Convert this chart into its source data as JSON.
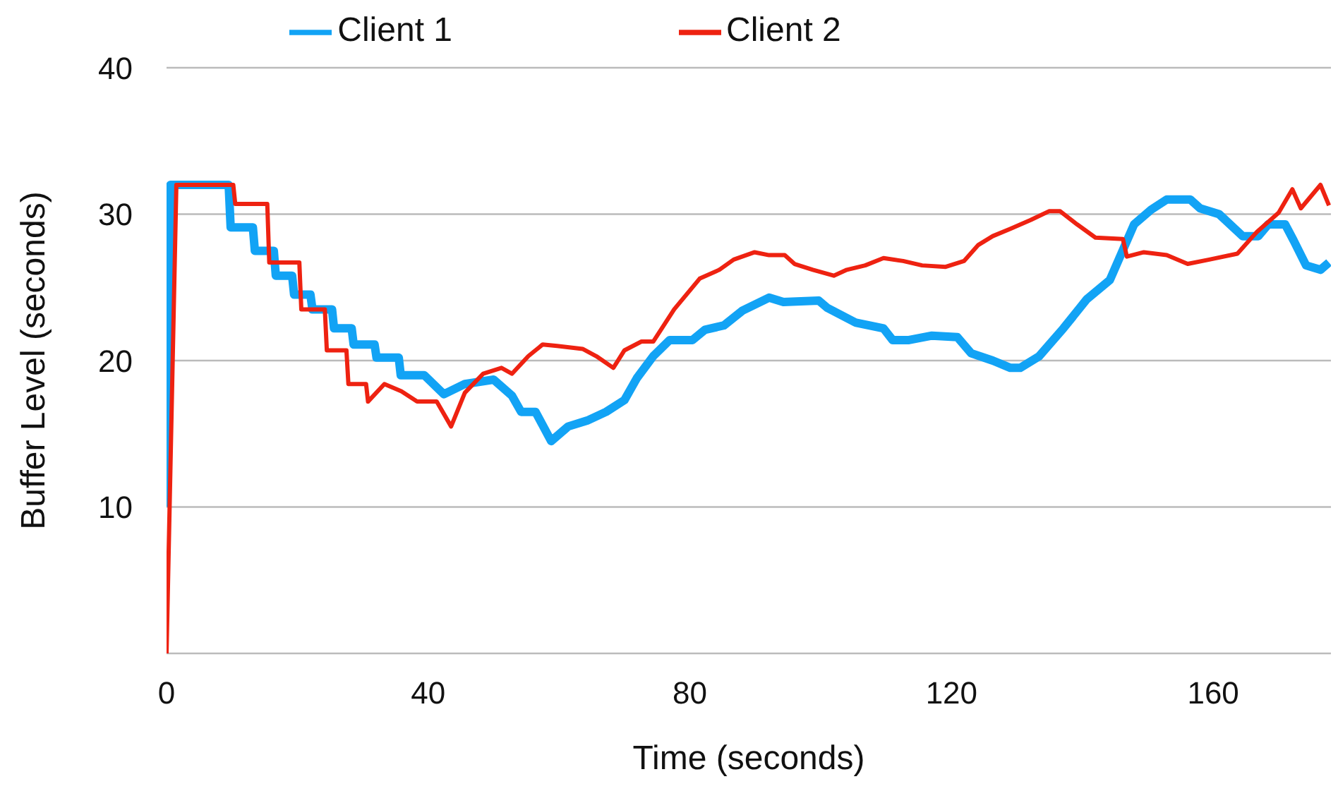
{
  "chart_data": {
    "type": "line",
    "xlabel": "Time (seconds)",
    "ylabel": "Buffer Level (seconds)",
    "xlim": [
      0,
      178
    ],
    "xticks": [
      0,
      40,
      80,
      120,
      160
    ],
    "ylim": [
      0,
      40
    ],
    "yticks": [
      10,
      20,
      30,
      40
    ],
    "grid": "y",
    "legend": "top",
    "marker": "none",
    "line_style": "solid",
    "series": [
      {
        "name": "Client 1",
        "color": "#12a3f5",
        "x": [
          0,
          0.6,
          5,
          9.5,
          9.8,
          13.2,
          13.5,
          16.4,
          16.7,
          19.2,
          19.5,
          22,
          22.3,
          25.3,
          25.6,
          28.3,
          28.6,
          31.8,
          32.1,
          35.5,
          35.8,
          39.4,
          42.4,
          45.6,
          50,
          52.8,
          54.2,
          56.4,
          58.8,
          61.4,
          64.3,
          67.2,
          70,
          71.9,
          74.4,
          76.9,
          80.4,
          82.3,
          85.2,
          88,
          92.1,
          94.3,
          99.7,
          101,
          105.3,
          109.6,
          111,
          113.5,
          117,
          120.9,
          123,
          126.3,
          129,
          130.5,
          133.4,
          137.1,
          140.7,
          144.2,
          147.9,
          150.5,
          152.9,
          156.5,
          158,
          160.9,
          164.5,
          166.9,
          168.4,
          171,
          172.3,
          174.2,
          176.4,
          177.7
        ],
        "values": [
          10,
          32,
          32,
          32,
          29.1,
          29.1,
          27.5,
          27.5,
          25.8,
          25.8,
          24.5,
          24.5,
          23.5,
          23.5,
          22.2,
          22.2,
          21.1,
          21.1,
          20.2,
          20.2,
          19,
          19,
          17.7,
          18.4,
          18.7,
          17.6,
          16.5,
          16.5,
          14.5,
          15.5,
          15.9,
          16.5,
          17.3,
          18.8,
          20.3,
          21.4,
          21.4,
          22.1,
          22.4,
          23.4,
          24.3,
          24,
          24.1,
          23.6,
          22.6,
          22.2,
          21.4,
          21.4,
          21.7,
          21.6,
          20.5,
          20,
          19.5,
          19.5,
          20.3,
          22.2,
          24.2,
          25.5,
          29.3,
          30.3,
          31,
          31,
          30.4,
          30,
          28.5,
          28.5,
          29.3,
          29.3,
          28.2,
          26.5,
          26.2,
          26.7
        ]
      },
      {
        "name": "Client 2",
        "color": "#ee2211",
        "x": [
          0,
          1.5,
          5,
          10.2,
          10.5,
          15.4,
          15.7,
          20.3,
          20.6,
          24.2,
          24.5,
          27.5,
          27.8,
          30.5,
          30.8,
          33.3,
          35.9,
          38.3,
          41.3,
          43.5,
          45.6,
          48.4,
          51.2,
          52.8,
          55.3,
          57.5,
          59.7,
          63.6,
          65.7,
          68.3,
          70,
          72.6,
          74.4,
          77.6,
          81.5,
          84.5,
          86.7,
          89.9,
          92.1,
          94.5,
          96,
          98.8,
          102,
          104,
          106.8,
          109.6,
          112.6,
          115.5,
          119.1,
          121.9,
          124.1,
          126.3,
          129,
          132.1,
          134.9,
          136.6,
          139.2,
          142,
          146.2,
          146.8,
          149.4,
          152.9,
          156.1,
          159.4,
          163.7,
          166.7,
          170,
          172.1,
          173.4,
          176.4,
          177.7
        ],
        "values": [
          0,
          32,
          32,
          32,
          30.7,
          30.7,
          26.7,
          26.7,
          23.5,
          23.5,
          20.7,
          20.7,
          18.4,
          18.4,
          17.2,
          18.4,
          17.9,
          17.2,
          17.2,
          15.5,
          17.8,
          19.1,
          19.5,
          19.1,
          20.3,
          21.1,
          21,
          20.8,
          20.3,
          19.5,
          20.7,
          21.3,
          21.3,
          23.5,
          25.6,
          26.2,
          26.9,
          27.4,
          27.2,
          27.2,
          26.6,
          26.2,
          25.8,
          26.2,
          26.5,
          27,
          26.8,
          26.5,
          26.4,
          26.8,
          27.9,
          28.5,
          29,
          29.6,
          30.2,
          30.2,
          29.3,
          28.4,
          28.3,
          27.1,
          27.4,
          27.2,
          26.6,
          26.9,
          27.3,
          28.8,
          30.1,
          31.7,
          30.4,
          32,
          30.6
        ]
      }
    ]
  }
}
